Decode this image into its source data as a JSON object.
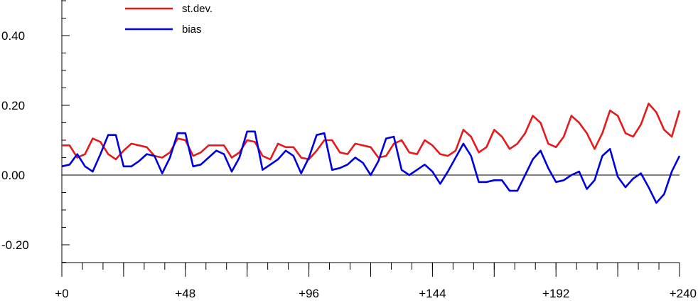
{
  "chart_data": {
    "type": "line",
    "xlim": [
      0,
      240
    ],
    "ylim": [
      -0.26,
      0.5
    ],
    "x_ticks": [
      0,
      48,
      96,
      144,
      192,
      240
    ],
    "x_tick_labels": [
      "+0",
      "+48",
      "+96",
      "+144",
      "+192",
      "+240"
    ],
    "y_ticks": [
      -0.2,
      0.0,
      0.2,
      0.4
    ],
    "y_tick_labels": [
      "-0.20",
      "0.00",
      "0.20",
      "0.40"
    ],
    "zero_line": true,
    "grid": false,
    "legend_position": "top-left",
    "series": [
      {
        "name": "st.dev.",
        "color": "#e41a1c",
        "points": [
          [
            0,
            0.085
          ],
          [
            3,
            0.085
          ],
          [
            6,
            0.05
          ],
          [
            9,
            0.06
          ],
          [
            12,
            0.105
          ],
          [
            15,
            0.095
          ],
          [
            18,
            0.06
          ],
          [
            21,
            0.045
          ],
          [
            24,
            0.07
          ],
          [
            27,
            0.09
          ],
          [
            30,
            0.085
          ],
          [
            33,
            0.08
          ],
          [
            36,
            0.055
          ],
          [
            39,
            0.05
          ],
          [
            42,
            0.065
          ],
          [
            45,
            0.105
          ],
          [
            48,
            0.1
          ],
          [
            51,
            0.055
          ],
          [
            54,
            0.065
          ],
          [
            57,
            0.085
          ],
          [
            60,
            0.085
          ],
          [
            63,
            0.085
          ],
          [
            66,
            0.05
          ],
          [
            69,
            0.065
          ],
          [
            72,
            0.1
          ],
          [
            75,
            0.095
          ],
          [
            78,
            0.055
          ],
          [
            81,
            0.045
          ],
          [
            84,
            0.09
          ],
          [
            87,
            0.08
          ],
          [
            90,
            0.08
          ],
          [
            93,
            0.05
          ],
          [
            96,
            0.045
          ],
          [
            99,
            0.07
          ],
          [
            102,
            0.1
          ],
          [
            105,
            0.1
          ],
          [
            108,
            0.065
          ],
          [
            111,
            0.06
          ],
          [
            114,
            0.09
          ],
          [
            117,
            0.085
          ],
          [
            120,
            0.08
          ],
          [
            123,
            0.05
          ],
          [
            126,
            0.055
          ],
          [
            129,
            0.09
          ],
          [
            132,
            0.1
          ],
          [
            135,
            0.065
          ],
          [
            138,
            0.06
          ],
          [
            141,
            0.1
          ],
          [
            144,
            0.085
          ],
          [
            147,
            0.06
          ],
          [
            150,
            0.055
          ],
          [
            153,
            0.07
          ],
          [
            156,
            0.13
          ],
          [
            159,
            0.11
          ],
          [
            162,
            0.065
          ],
          [
            165,
            0.08
          ],
          [
            168,
            0.13
          ],
          [
            171,
            0.11
          ],
          [
            174,
            0.075
          ],
          [
            177,
            0.09
          ],
          [
            180,
            0.12
          ],
          [
            183,
            0.17
          ],
          [
            186,
            0.15
          ],
          [
            189,
            0.09
          ],
          [
            192,
            0.08
          ],
          [
            195,
            0.11
          ],
          [
            198,
            0.17
          ],
          [
            201,
            0.15
          ],
          [
            204,
            0.12
          ],
          [
            207,
            0.075
          ],
          [
            210,
            0.12
          ],
          [
            213,
            0.185
          ],
          [
            216,
            0.17
          ],
          [
            219,
            0.12
          ],
          [
            222,
            0.11
          ],
          [
            225,
            0.145
          ],
          [
            228,
            0.205
          ],
          [
            231,
            0.18
          ],
          [
            234,
            0.13
          ],
          [
            237,
            0.11
          ],
          [
            240,
            0.185
          ]
        ]
      },
      {
        "name": "bias",
        "color": "#0000dd",
        "points": [
          [
            0,
            0.025
          ],
          [
            3,
            0.03
          ],
          [
            6,
            0.06
          ],
          [
            9,
            0.025
          ],
          [
            12,
            0.01
          ],
          [
            15,
            0.06
          ],
          [
            18,
            0.115
          ],
          [
            21,
            0.115
          ],
          [
            24,
            0.025
          ],
          [
            27,
            0.025
          ],
          [
            30,
            0.04
          ],
          [
            33,
            0.06
          ],
          [
            36,
            0.055
          ],
          [
            39,
            0.005
          ],
          [
            42,
            0.05
          ],
          [
            45,
            0.12
          ],
          [
            48,
            0.12
          ],
          [
            51,
            0.025
          ],
          [
            54,
            0.03
          ],
          [
            57,
            0.05
          ],
          [
            60,
            0.07
          ],
          [
            63,
            0.06
          ],
          [
            66,
            0.01
          ],
          [
            69,
            0.05
          ],
          [
            72,
            0.125
          ],
          [
            75,
            0.125
          ],
          [
            78,
            0.015
          ],
          [
            81,
            0.03
          ],
          [
            84,
            0.045
          ],
          [
            87,
            0.07
          ],
          [
            90,
            0.055
          ],
          [
            93,
            0.005
          ],
          [
            96,
            0.05
          ],
          [
            99,
            0.115
          ],
          [
            102,
            0.12
          ],
          [
            105,
            0.015
          ],
          [
            108,
            0.02
          ],
          [
            111,
            0.03
          ],
          [
            114,
            0.05
          ],
          [
            117,
            0.035
          ],
          [
            120,
            0.0
          ],
          [
            123,
            0.04
          ],
          [
            126,
            0.105
          ],
          [
            129,
            0.11
          ],
          [
            132,
            0.015
          ],
          [
            135,
            0.0
          ],
          [
            138,
            0.015
          ],
          [
            141,
            0.03
          ],
          [
            144,
            0.01
          ],
          [
            147,
            -0.025
          ],
          [
            150,
            0.01
          ],
          [
            153,
            0.05
          ],
          [
            156,
            0.09
          ],
          [
            159,
            0.055
          ],
          [
            162,
            -0.02
          ],
          [
            165,
            -0.02
          ],
          [
            168,
            -0.015
          ],
          [
            171,
            -0.015
          ],
          [
            174,
            -0.045
          ],
          [
            177,
            -0.045
          ],
          [
            180,
            0.0
          ],
          [
            183,
            0.045
          ],
          [
            186,
            0.07
          ],
          [
            189,
            0.02
          ],
          [
            192,
            -0.02
          ],
          [
            195,
            -0.015
          ],
          [
            198,
            0.0
          ],
          [
            201,
            0.01
          ],
          [
            204,
            -0.04
          ],
          [
            207,
            -0.015
          ],
          [
            210,
            0.055
          ],
          [
            213,
            0.075
          ],
          [
            216,
            -0.005
          ],
          [
            219,
            -0.035
          ],
          [
            222,
            -0.01
          ],
          [
            225,
            0.005
          ],
          [
            228,
            -0.035
          ],
          [
            231,
            -0.08
          ],
          [
            234,
            -0.055
          ],
          [
            237,
            0.01
          ],
          [
            240,
            0.055
          ]
        ]
      }
    ]
  }
}
